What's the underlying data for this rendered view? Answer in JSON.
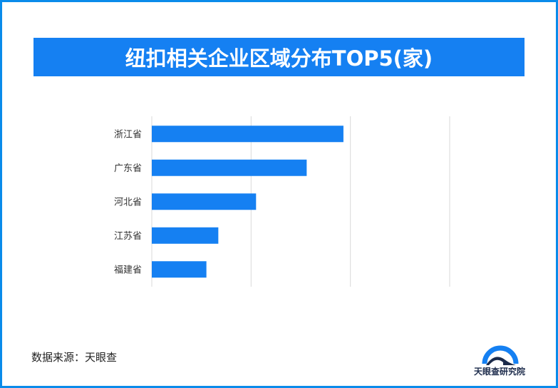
{
  "title": "纽扣相关企业区域分布TOP5(家)",
  "source_text": "数据来源：天眼查",
  "logo_text": "天眼查研究院",
  "colors": {
    "bar": "#1580f2",
    "frame": "#0a8bea",
    "grid": "#d9d9d9"
  },
  "chart_data": {
    "type": "bar",
    "orientation": "horizontal",
    "title": "纽扣相关企业区域分布TOP5(家)",
    "categories": [
      "浙江省",
      "广东省",
      "河北省",
      "江苏省",
      "福建省"
    ],
    "values": [
      1930,
      1560,
      1050,
      670,
      550
    ],
    "xlim": [
      0,
      3000
    ],
    "xticks": [
      0,
      1000,
      2000,
      3000
    ],
    "show_tick_labels": false,
    "grid": true
  }
}
